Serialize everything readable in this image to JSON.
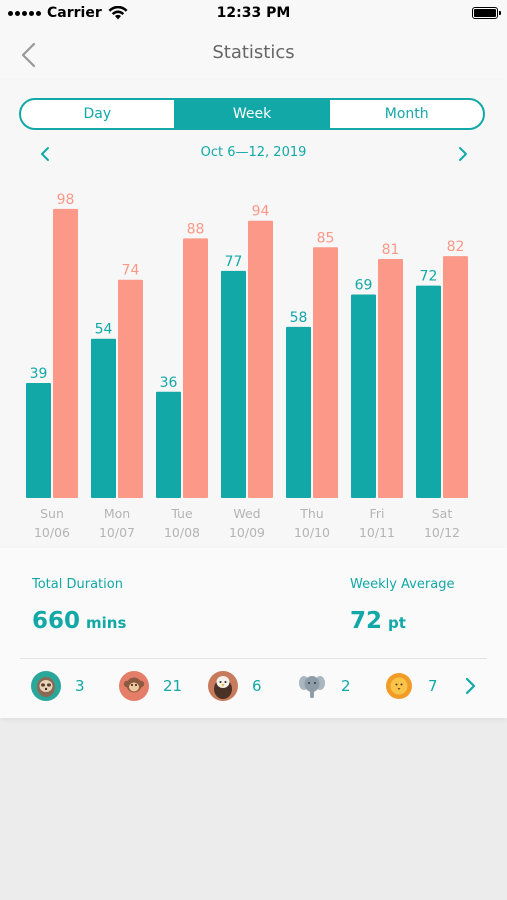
{
  "status_bar": {
    "carrier": "Carrier",
    "time": "12:33 PM"
  },
  "nav": {
    "title": "Statistics"
  },
  "tabs": [
    {
      "label": "Day",
      "active": false
    },
    {
      "label": "Week",
      "active": true
    },
    {
      "label": "Month",
      "active": false
    }
  ],
  "week_label": "Oct 6—12, 2019",
  "colors": {
    "teal": "#12a8a8",
    "salmon": "#fb9887",
    "axis_text": "#b4b4b4"
  },
  "chart_data": {
    "type": "bar",
    "categories": [
      "Sun",
      "Mon",
      "Tue",
      "Wed",
      "Thu",
      "Fri",
      "Sat"
    ],
    "dates": [
      "10/06",
      "10/07",
      "10/08",
      "10/09",
      "10/10",
      "10/11",
      "10/12"
    ],
    "series": [
      {
        "values": [
          39,
          54,
          36,
          77,
          58,
          69,
          72
        ],
        "color": "#12a8a8"
      },
      {
        "values": [
          98,
          74,
          88,
          94,
          85,
          81,
          82
        ],
        "color": "#fb9887"
      }
    ],
    "ylim": [
      0,
      100
    ],
    "grid": false
  },
  "summary": {
    "total_label": "Total Duration",
    "total_value": "660",
    "total_unit": "mins",
    "avg_label": "Weekly Average",
    "avg_value": "72",
    "avg_unit": "pt"
  },
  "animals": [
    {
      "icon": "sloth-icon",
      "count": "3"
    },
    {
      "icon": "monkey-icon",
      "count": "21"
    },
    {
      "icon": "eagle-icon",
      "count": "6"
    },
    {
      "icon": "elephant-icon",
      "count": "2"
    },
    {
      "icon": "lion-icon",
      "count": "7"
    }
  ]
}
